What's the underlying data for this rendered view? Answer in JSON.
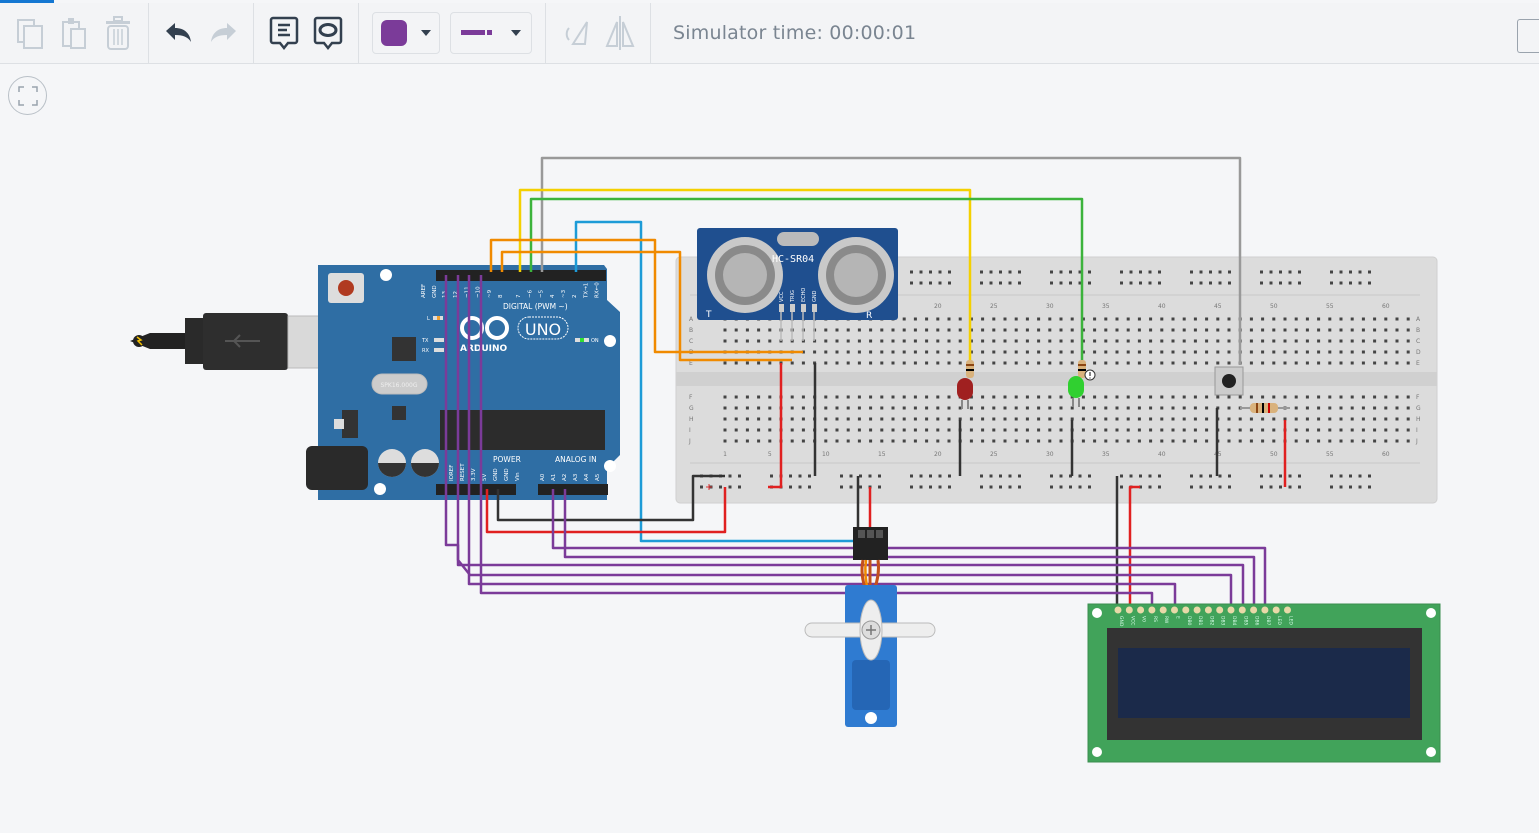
{
  "toolbar": {
    "simulator_time": "Simulator time: 00:00:01",
    "wire_color": "#7b3b99",
    "buttons": [
      "copy",
      "paste",
      "delete",
      "undo",
      "redo",
      "notes",
      "annotation-visibility",
      "wire-color",
      "wire-type",
      "rotate",
      "flip"
    ]
  },
  "arduino": {
    "brand": "ARDUINO",
    "model": "UNO",
    "digital_label": "DIGITAL (PWM ~)",
    "power_label": "POWER",
    "analog_label": "ANALOG IN",
    "crystal": "SPK16.000G",
    "top_pins": [
      "AREF",
      "GND",
      "13",
      "12",
      "~11",
      "~10",
      "~9",
      "8",
      "7",
      "~6",
      "~5",
      "4",
      "~3",
      "2",
      "TX→1",
      "RX←0"
    ],
    "bottom_pins": [
      "IOREF",
      "RESET",
      "3.3V",
      "5V",
      "GND",
      "GND",
      "Vin",
      "A0",
      "A1",
      "A2",
      "A3",
      "A4",
      "A5"
    ],
    "leds": [
      "L",
      "TX",
      "RX",
      "ON"
    ]
  },
  "sensor": {
    "name": "HC-SR04",
    "pins": [
      "VCC",
      "TRIG",
      "ECHO",
      "GND"
    ],
    "t": "T",
    "r": "R"
  },
  "breadboard": {
    "column_labels": [
      "1",
      "5",
      "10",
      "15",
      "20",
      "25",
      "30",
      "35",
      "40",
      "45",
      "50",
      "55",
      "60"
    ],
    "row_labels_top": [
      "A",
      "B",
      "C",
      "D",
      "E"
    ],
    "row_labels_bottom": [
      "F",
      "G",
      "H",
      "I",
      "J"
    ]
  },
  "lcd": {
    "pins": [
      "GND",
      "VCC",
      "V0",
      "RS",
      "RW",
      "E",
      "DB0",
      "DB1",
      "DB2",
      "DB3",
      "DB4",
      "DB5",
      "DB6",
      "DB7",
      "LED",
      "LED"
    ]
  },
  "colors": {
    "purple": "#7b3b99",
    "red": "#e02020",
    "black": "#333333",
    "yellow": "#f4d000",
    "green": "#3cb33c",
    "gray": "#999999",
    "orange": "#f08a00",
    "blue": "#1d9bd7"
  }
}
